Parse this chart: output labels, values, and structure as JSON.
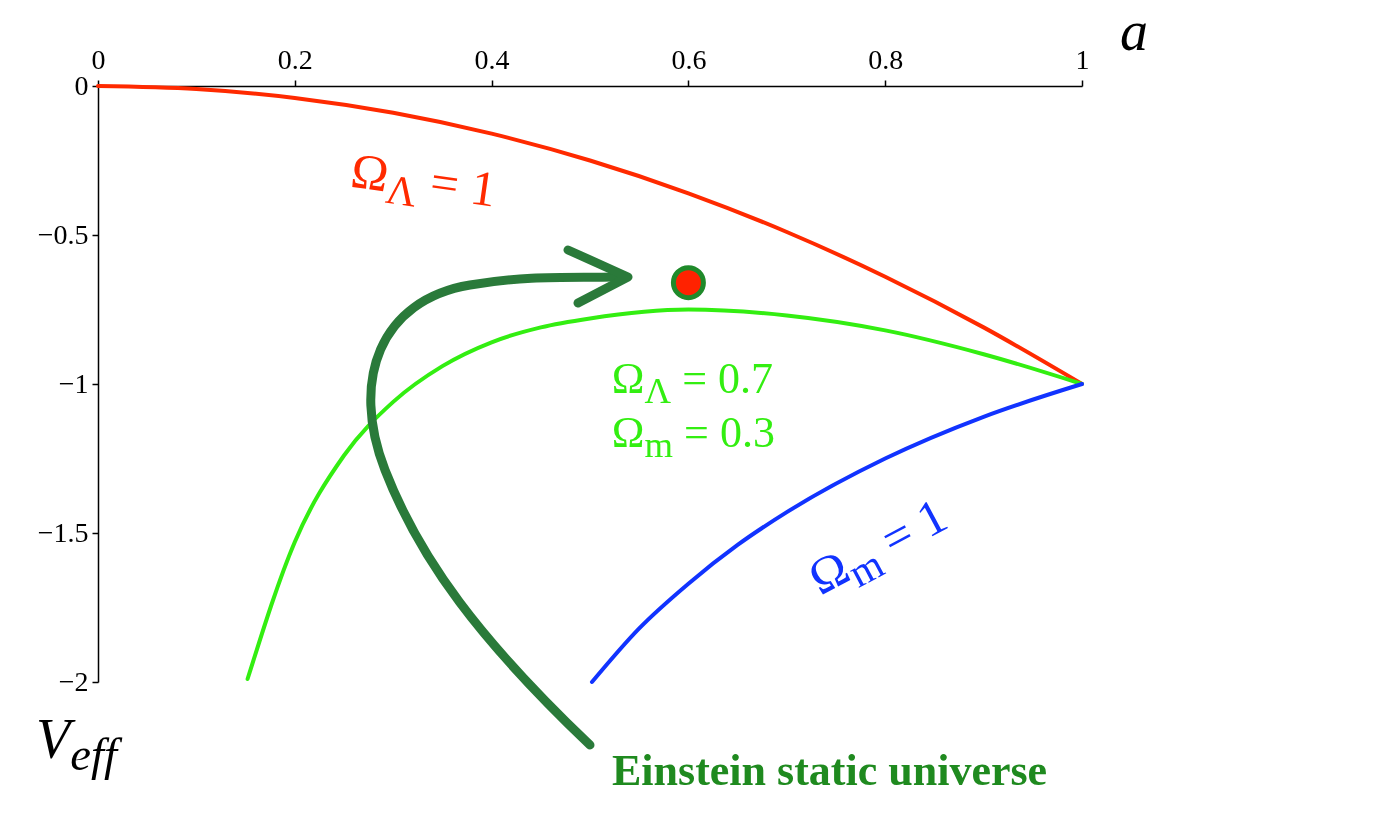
{
  "chart_data": {
    "type": "line",
    "xlabel": "a",
    "ylabel": "V$_{eff}$",
    "xlim": [
      0,
      1
    ],
    "xticks": [
      0,
      0.2,
      0.4,
      0.6,
      0.8,
      1
    ],
    "ylim": [
      -2,
      0
    ],
    "yticks": [
      0,
      -0.5,
      -1,
      -1.5,
      -2
    ],
    "grid": false,
    "series": [
      {
        "name": "Ω$_{Λ}$ = 1",
        "color": "#ff2a00",
        "x": [
          0,
          0.1,
          0.2,
          0.3,
          0.4,
          0.5,
          0.6,
          0.7,
          0.8,
          0.9,
          1
        ],
        "values": [
          0,
          -0.01,
          -0.04,
          -0.09,
          -0.16,
          -0.25,
          -0.36,
          -0.49,
          -0.64,
          -0.81,
          -1
        ]
      },
      {
        "name": "Ω$_{Λ}$ = 0.7\nΩ$_{m}$ = 0.3",
        "color": "#33ee11",
        "x": [
          0.152,
          0.2,
          0.25,
          0.3,
          0.35,
          0.4,
          0.45,
          0.5,
          0.6,
          0.7,
          0.8,
          0.9,
          1
        ],
        "values": [
          -1.99,
          -1.53,
          -1.24,
          -1.06,
          -0.94,
          -0.86,
          -0.81,
          -0.78,
          -0.75,
          -0.77,
          -0.82,
          -0.9,
          -1
        ]
      },
      {
        "name": "Ω$_{m}$ = 1",
        "color": "#1133ff",
        "x": [
          0.502,
          0.55,
          0.6,
          0.65,
          0.7,
          0.8,
          0.9,
          1
        ],
        "values": [
          -2,
          -1.82,
          -1.67,
          -1.54,
          -1.43,
          -1.25,
          -1.11,
          -1
        ]
      },
      {
        "type": "scatter",
        "color": "#ff2200",
        "x": [
          0.6
        ],
        "values": [
          -0.66
        ]
      }
    ],
    "annotations": [
      "Einstein static universe"
    ]
  }
}
